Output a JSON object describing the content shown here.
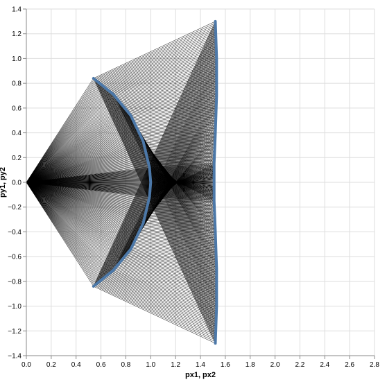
{
  "chart_data": {
    "type": "line",
    "title": "",
    "xlabel": "px1, px2",
    "ylabel": "py1, py2",
    "xlim": [
      0,
      2.8
    ],
    "ylim": [
      -1.4,
      1.4
    ],
    "x_ticks": [
      "0.0",
      "0.2",
      "0.4",
      "0.6",
      "0.8",
      "1.0",
      "1.2",
      "1.4",
      "1.6",
      "1.8",
      "2.0",
      "2.2",
      "2.4",
      "2.6",
      "2.8"
    ],
    "y_ticks": [
      "1.4",
      "1.2",
      "1.0",
      "0.8",
      "0.6",
      "0.4",
      "0.2",
      "0.0",
      "−0.2",
      "−0.4",
      "−0.6",
      "−0.8",
      "−1.0",
      "−1.2",
      "−1.4"
    ],
    "grid": true,
    "colors": {
      "segments": "#000000",
      "curves": "#4c78a8"
    },
    "series": [
      {
        "role": "segment-start-point",
        "x": [
          0.0
        ],
        "y": [
          0.0
        ]
      },
      {
        "role": "segment-endpoints-inner-arc",
        "x": [
          0.54,
          0.7,
          0.84,
          0.94,
          0.99,
          1.0,
          0.99,
          0.94,
          0.84,
          0.7,
          0.54
        ],
        "y": [
          0.84,
          0.71,
          0.54,
          0.33,
          0.12,
          0.0,
          -0.12,
          -0.33,
          -0.54,
          -0.71,
          -0.84
        ]
      },
      {
        "role": "segment-endpoints-outer-curve",
        "x": [
          1.52,
          1.53,
          1.53,
          1.52,
          1.51,
          1.51,
          1.51,
          1.52,
          1.53,
          1.53,
          1.52
        ],
        "y": [
          1.3,
          1.0,
          0.7,
          0.4,
          0.15,
          0.0,
          -0.15,
          -0.4,
          -0.7,
          -1.0,
          -1.3
        ]
      }
    ]
  }
}
